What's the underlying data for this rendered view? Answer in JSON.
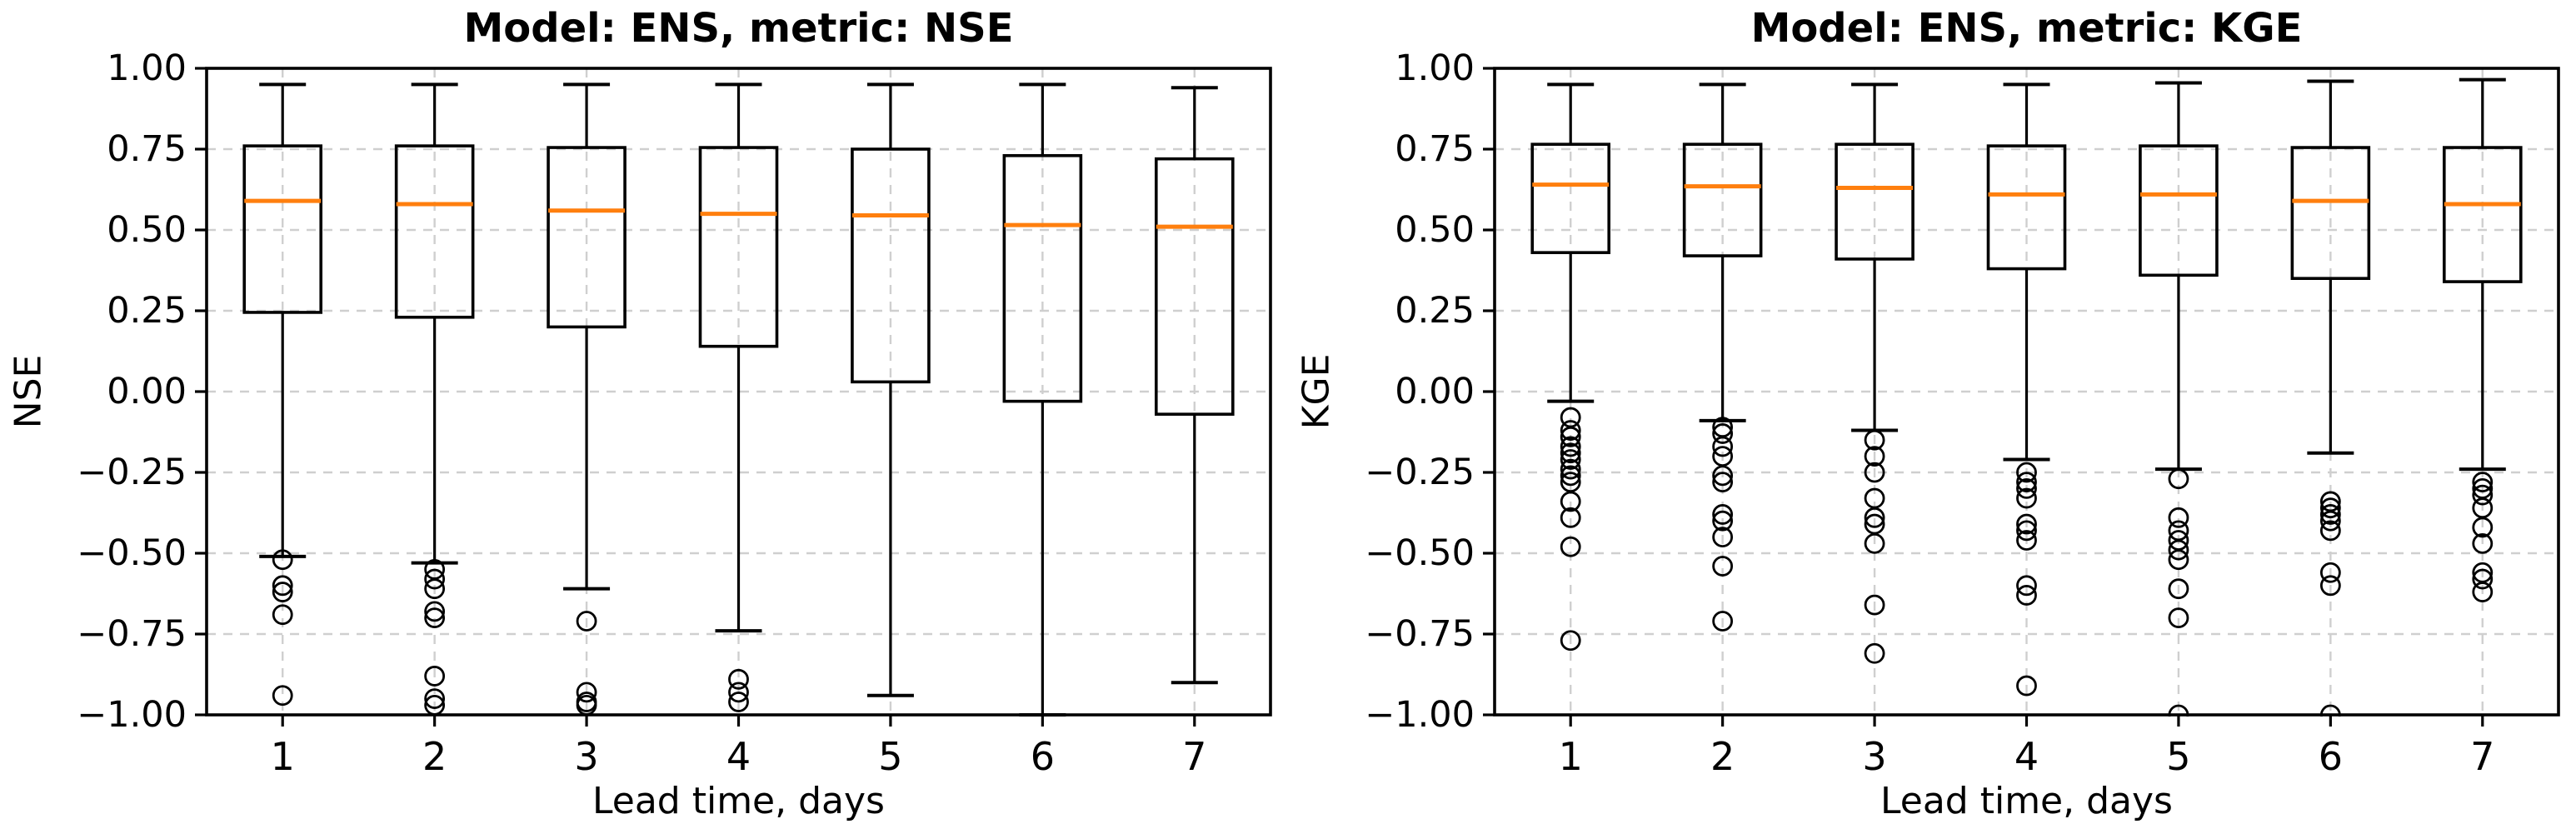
{
  "figure": {
    "background_color": "#ffffff",
    "median_color": "#ff7f0e",
    "line_color": "#000000",
    "grid_color": "#cfcfcf"
  },
  "chart_data": [
    {
      "type": "boxplot",
      "title": "Model: ENS, metric: NSE",
      "xlabel": "Lead time, days",
      "ylabel": "NSE",
      "categories": [
        "1",
        "2",
        "3",
        "4",
        "5",
        "6",
        "7"
      ],
      "ylim": [
        -1.0,
        1.0
      ],
      "ytick_values": [
        1.0,
        0.75,
        0.5,
        0.25,
        0.0,
        -0.25,
        -0.5,
        -0.75,
        -1.0
      ],
      "ytick_labels": [
        "1.00",
        "0.75",
        "0.50",
        "0.25",
        "0.00",
        "−0.25",
        "−0.50",
        "−0.75",
        "−1.00"
      ],
      "grid": {
        "visible": true,
        "style": "dashed",
        "axes": "both"
      },
      "legend": null,
      "boxes": [
        {
          "lead_time": 1,
          "whislo": -0.51,
          "q1": 0.245,
          "med": 0.59,
          "q3": 0.76,
          "whishi": 0.95,
          "fliers": [
            -0.52,
            -0.6,
            -0.62,
            -0.69,
            -0.94
          ]
        },
        {
          "lead_time": 2,
          "whislo": -0.53,
          "q1": 0.23,
          "med": 0.58,
          "q3": 0.76,
          "whishi": 0.95,
          "fliers": [
            -0.55,
            -0.58,
            -0.61,
            -0.68,
            -0.7,
            -0.88,
            -0.95,
            -0.97
          ]
        },
        {
          "lead_time": 3,
          "whislo": -0.61,
          "q1": 0.2,
          "med": 0.56,
          "q3": 0.755,
          "whishi": 0.95,
          "fliers": [
            -0.71,
            -0.93,
            -0.96,
            -0.97
          ]
        },
        {
          "lead_time": 4,
          "whislo": -0.74,
          "q1": 0.14,
          "med": 0.55,
          "q3": 0.755,
          "whishi": 0.95,
          "fliers": [
            -0.89,
            -0.93,
            -0.96
          ]
        },
        {
          "lead_time": 5,
          "whislo": -0.94,
          "q1": 0.03,
          "med": 0.545,
          "q3": 0.75,
          "whishi": 0.95,
          "fliers": []
        },
        {
          "lead_time": 6,
          "whislo": -1.0,
          "q1": -0.03,
          "med": 0.515,
          "q3": 0.73,
          "whishi": 0.95,
          "fliers": []
        },
        {
          "lead_time": 7,
          "whislo": -0.9,
          "q1": -0.07,
          "med": 0.51,
          "q3": 0.72,
          "whishi": 0.94,
          "fliers": []
        }
      ]
    },
    {
      "type": "boxplot",
      "title": "Model: ENS, metric: KGE",
      "xlabel": "Lead time, days",
      "ylabel": "KGE",
      "categories": [
        "1",
        "2",
        "3",
        "4",
        "5",
        "6",
        "7"
      ],
      "ylim": [
        -1.0,
        1.0
      ],
      "ytick_values": [
        1.0,
        0.75,
        0.5,
        0.25,
        0.0,
        -0.25,
        -0.5,
        -0.75,
        -1.0
      ],
      "ytick_labels": [
        "1.00",
        "0.75",
        "0.50",
        "0.25",
        "0.00",
        "−0.25",
        "−0.50",
        "−0.75",
        "−1.00"
      ],
      "grid": {
        "visible": true,
        "style": "dashed",
        "axes": "both"
      },
      "legend": null,
      "boxes": [
        {
          "lead_time": 1,
          "whislo": -0.03,
          "q1": 0.43,
          "med": 0.64,
          "q3": 0.765,
          "whishi": 0.95,
          "fliers": [
            -0.08,
            -0.12,
            -0.14,
            -0.17,
            -0.19,
            -0.21,
            -0.24,
            -0.26,
            -0.28,
            -0.34,
            -0.39,
            -0.48,
            -0.77
          ]
        },
        {
          "lead_time": 2,
          "whislo": -0.09,
          "q1": 0.42,
          "med": 0.635,
          "q3": 0.765,
          "whishi": 0.95,
          "fliers": [
            -0.11,
            -0.13,
            -0.17,
            -0.2,
            -0.26,
            -0.28,
            -0.38,
            -0.4,
            -0.45,
            -0.54,
            -0.71
          ]
        },
        {
          "lead_time": 3,
          "whislo": -0.12,
          "q1": 0.41,
          "med": 0.63,
          "q3": 0.765,
          "whishi": 0.95,
          "fliers": [
            -0.15,
            -0.2,
            -0.25,
            -0.33,
            -0.39,
            -0.41,
            -0.47,
            -0.66,
            -0.81
          ]
        },
        {
          "lead_time": 4,
          "whislo": -0.21,
          "q1": 0.38,
          "med": 0.61,
          "q3": 0.76,
          "whishi": 0.95,
          "fliers": [
            -0.25,
            -0.28,
            -0.3,
            -0.33,
            -0.41,
            -0.43,
            -0.46,
            -0.6,
            -0.63,
            -0.91
          ]
        },
        {
          "lead_time": 5,
          "whislo": -0.24,
          "q1": 0.36,
          "med": 0.61,
          "q3": 0.76,
          "whishi": 0.955,
          "fliers": [
            -0.27,
            -0.39,
            -0.43,
            -0.46,
            -0.49,
            -0.52,
            -0.61,
            -0.7,
            -1.0
          ]
        },
        {
          "lead_time": 6,
          "whislo": -0.19,
          "q1": 0.35,
          "med": 0.59,
          "q3": 0.755,
          "whishi": 0.96,
          "fliers": [
            -0.34,
            -0.36,
            -0.38,
            -0.4,
            -0.43,
            -0.56,
            -0.6,
            -1.0
          ]
        },
        {
          "lead_time": 7,
          "whislo": -0.24,
          "q1": 0.34,
          "med": 0.58,
          "q3": 0.755,
          "whishi": 0.965,
          "fliers": [
            -0.28,
            -0.3,
            -0.32,
            -0.36,
            -0.42,
            -0.47,
            -0.56,
            -0.58,
            -0.62
          ]
        }
      ]
    }
  ]
}
